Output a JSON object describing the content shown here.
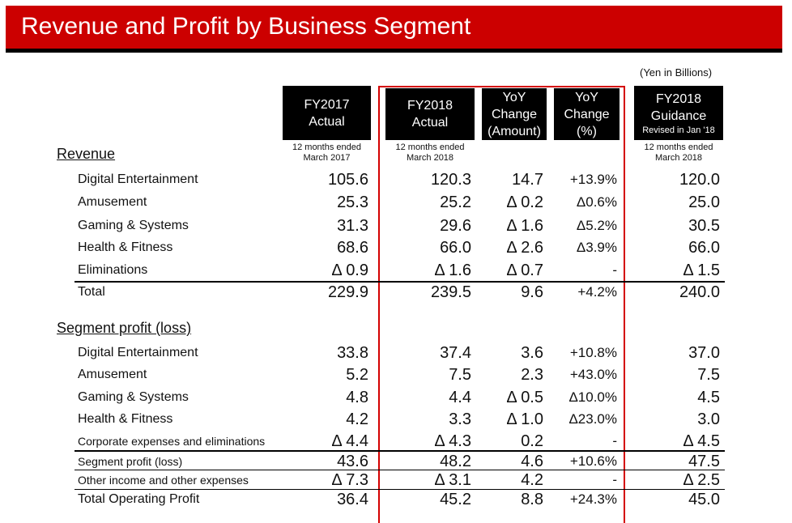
{
  "header": {
    "title": "Revenue and Profit by Business Segment",
    "unit_note": "(Yen in Billions)"
  },
  "columns": [
    {
      "line1": "FY2017",
      "line2": "Actual",
      "line3": "",
      "sub1": "12 months ended",
      "sub2": "March 2017"
    },
    {
      "line1": "FY2018",
      "line2": "Actual",
      "line3": "",
      "sub1": "12 months ended",
      "sub2": "March 2018"
    },
    {
      "line1": "YoY",
      "line2": "Change",
      "line3": "(Amount)",
      "sub1": "",
      "sub2": ""
    },
    {
      "line1": "YoY",
      "line2": "Change",
      "line3": "(%)",
      "sub1": "",
      "sub2": ""
    },
    {
      "line1": "FY2018",
      "line2": "Guidance",
      "line3": "Revised in Jan '18",
      "sub1": "12 months ended",
      "sub2": "March 2018"
    }
  ],
  "revenue": {
    "heading": "Revenue",
    "rows": [
      {
        "label": "Digital Entertainment",
        "values": [
          "105.6",
          "120.3",
          "14.7",
          "+13.9%",
          "120.0"
        ]
      },
      {
        "label": "Amusement",
        "values": [
          "25.3",
          "25.2",
          "Δ 0.2",
          "Δ0.6%",
          "25.0"
        ]
      },
      {
        "label": "Gaming & Systems",
        "values": [
          "31.3",
          "29.6",
          "Δ 1.6",
          "Δ5.2%",
          "30.5"
        ]
      },
      {
        "label": "Health & Fitness",
        "values": [
          "68.6",
          "66.0",
          "Δ 2.6",
          "Δ3.9%",
          "66.0"
        ]
      },
      {
        "label": "Eliminations",
        "values": [
          "Δ 0.9",
          "Δ 1.6",
          "Δ 0.7",
          "-",
          "Δ 1.5"
        ]
      },
      {
        "label": "Total",
        "values": [
          "229.9",
          "239.5",
          "9.6",
          "+4.2%",
          "240.0"
        ]
      }
    ]
  },
  "profit": {
    "heading": "Segment profit (loss)",
    "rows": [
      {
        "label": "Digital Entertainment",
        "values": [
          "33.8",
          "37.4",
          "3.6",
          "+10.8%",
          "37.0"
        ]
      },
      {
        "label": "Amusement",
        "values": [
          "5.2",
          "7.5",
          "2.3",
          "+43.0%",
          "7.5"
        ]
      },
      {
        "label": "Gaming & Systems",
        "values": [
          "4.8",
          "4.4",
          "Δ 0.5",
          "Δ10.0%",
          "4.5"
        ]
      },
      {
        "label": "Health & Fitness",
        "values": [
          "4.2",
          "3.3",
          "Δ 1.0",
          "Δ23.0%",
          "3.0"
        ]
      },
      {
        "label": "Corporate expenses and eliminations",
        "values": [
          "Δ 4.4",
          "Δ 4.3",
          "0.2",
          "-",
          "Δ 4.5"
        ]
      },
      {
        "label": "Segment profit (loss)",
        "values": [
          "43.6",
          "48.2",
          "4.6",
          "+10.6%",
          "47.5"
        ]
      },
      {
        "label": "Other income and other expenses",
        "values": [
          "Δ 7.3",
          "Δ 3.1",
          "4.2",
          "-",
          "Δ 2.5"
        ]
      },
      {
        "label": "Total Operating Profit",
        "values": [
          "36.4",
          "45.2",
          "8.8",
          "+24.3%",
          "45.0"
        ]
      }
    ]
  },
  "colors": {
    "banner": "#cc0000",
    "highlight_frame": "#d40000"
  }
}
